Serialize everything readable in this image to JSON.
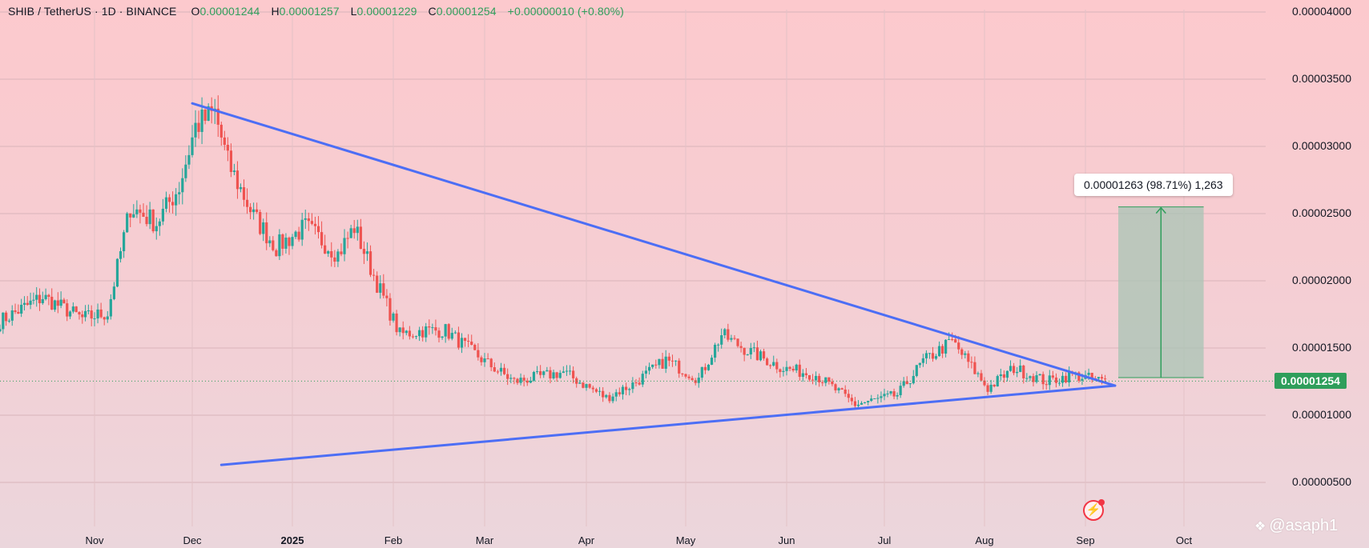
{
  "header": {
    "symbol": "SHIB / TetherUS · 1D · BINANCE",
    "o_label": "O",
    "o_value": "0.00001244",
    "h_label": "H",
    "h_value": "0.00001257",
    "l_label": "L",
    "l_value": "0.00001229",
    "c_label": "C",
    "c_value": "0.00001254",
    "change": "+0.00000010 (+0.80%)"
  },
  "current_price_label": "0.00001254",
  "measure_label": "0.00001263 (98.71%) 1,263",
  "watermark": "@asaph1",
  "icons": {
    "flash": "lightning-icon",
    "watermark": "tradingview-diamond-icon"
  },
  "colors": {
    "bull": "#26a69a",
    "bear": "#ef5350",
    "trendline": "#4c6ef5",
    "measure_fill": "#a8c4b4",
    "measure_line": "#2f9e5b",
    "price_tag": "#2f9e5b"
  },
  "chart_data": {
    "type": "candlestick",
    "title": "SHIB / TetherUS · 1D · BINANCE",
    "ylim": [
      3.5e-06,
      4.1e-05
    ],
    "y_tick_labels": [
      "0.00004000",
      "0.00003500",
      "0.00003000",
      "0.00002500",
      "0.00002000",
      "0.00001500",
      "0.00001000",
      "0.00000500"
    ],
    "x_tick_labels": [
      "Nov",
      "Dec",
      "2025",
      "Feb",
      "Mar",
      "Apr",
      "May",
      "Jun",
      "Jul",
      "Aug",
      "Sep",
      "Oct"
    ],
    "grid": true,
    "key_points": [
      {
        "date": "2024-10-01",
        "close": 1.7e-05
      },
      {
        "date": "2024-10-15",
        "close": 1.88e-05
      },
      {
        "date": "2024-10-28",
        "close": 1.72e-05
      },
      {
        "date": "2024-11-05",
        "close": 1.76e-05
      },
      {
        "date": "2024-11-12",
        "close": 2.55e-05
      },
      {
        "date": "2024-11-20",
        "close": 2.43e-05
      },
      {
        "date": "2024-11-27",
        "close": 2.7e-05
      },
      {
        "date": "2024-12-02",
        "close": 3.15e-05
      },
      {
        "date": "2024-12-08",
        "close": 3.25e-05
      },
      {
        "date": "2024-12-12",
        "close": 2.88e-05
      },
      {
        "date": "2024-12-20",
        "close": 2.48e-05
      },
      {
        "date": "2024-12-27",
        "close": 2.25e-05
      },
      {
        "date": "2025-01-05",
        "close": 2.4e-05
      },
      {
        "date": "2025-01-15",
        "close": 2.2e-05
      },
      {
        "date": "2025-01-20",
        "close": 2.4e-05
      },
      {
        "date": "2025-01-27",
        "close": 1.98e-05
      },
      {
        "date": "2025-02-03",
        "close": 1.6e-05
      },
      {
        "date": "2025-02-10",
        "close": 1.63e-05
      },
      {
        "date": "2025-02-17",
        "close": 1.63e-05
      },
      {
        "date": "2025-03-01",
        "close": 1.4e-05
      },
      {
        "date": "2025-03-10",
        "close": 1.25e-05
      },
      {
        "date": "2025-03-25",
        "close": 1.32e-05
      },
      {
        "date": "2025-04-07",
        "close": 1.13e-05
      },
      {
        "date": "2025-04-15",
        "close": 1.23e-05
      },
      {
        "date": "2025-04-25",
        "close": 1.41e-05
      },
      {
        "date": "2025-05-05",
        "close": 1.27e-05
      },
      {
        "date": "2025-05-12",
        "close": 1.6e-05
      },
      {
        "date": "2025-05-20",
        "close": 1.48e-05
      },
      {
        "date": "2025-05-31",
        "close": 1.35e-05
      },
      {
        "date": "2025-06-10",
        "close": 1.3e-05
      },
      {
        "date": "2025-06-22",
        "close": 1.08e-05
      },
      {
        "date": "2025-07-05",
        "close": 1.15e-05
      },
      {
        "date": "2025-07-13",
        "close": 1.4e-05
      },
      {
        "date": "2025-07-22",
        "close": 1.55e-05
      },
      {
        "date": "2025-08-02",
        "close": 1.2e-05
      },
      {
        "date": "2025-08-10",
        "close": 1.35e-05
      },
      {
        "date": "2025-08-20",
        "close": 1.25e-05
      },
      {
        "date": "2025-08-28",
        "close": 1.3e-05
      },
      {
        "date": "2025-09-07",
        "close": 1.25e-05
      }
    ],
    "series": [],
    "annotations": {
      "upper_trendline": [
        {
          "date": "2024-12-01",
          "price": 3.32e-05
        },
        {
          "date": "2025-09-10",
          "price": 1.22e-05
        }
      ],
      "lower_trendline": [
        {
          "date": "2024-12-10",
          "price": 6.3e-06
        },
        {
          "date": "2025-09-10",
          "price": 1.22e-05
        }
      ],
      "measure": {
        "from_price": 1.28e-05,
        "to_price": 2.55e-05,
        "start_date": "2025-09-11",
        "end_date": "2025-10-07"
      }
    }
  }
}
